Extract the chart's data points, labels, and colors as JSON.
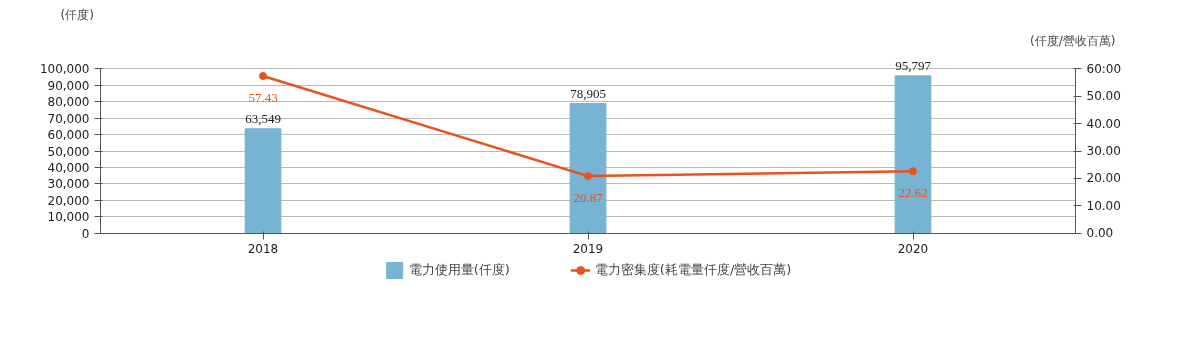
{
  "chart_data": {
    "type": "bar",
    "categories": [
      "2018",
      "2019",
      "2020"
    ],
    "ylabel": "(仟度)",
    "y2label": "(仟度/營收百萬)",
    "series": [
      {
        "name": "電力使用量(仟度)",
        "color": "#77b3d3",
        "values": [
          63549,
          78905,
          95797
        ],
        "value_labels": [
          "63,549",
          "78,905",
          "95,797"
        ]
      },
      {
        "name": "電力密集度(耗電量仟度/營收百萬)",
        "type": "line",
        "axis": "y2",
        "color": "#e8531e",
        "marker": "circle",
        "values": [
          57.43,
          20.87,
          22.62
        ],
        "value_labels": [
          "57.43",
          "20.87",
          "22.62"
        ]
      }
    ],
    "ylim": [
      0,
      100000
    ],
    "yticks": [
      {
        "value": 0,
        "label": "0"
      },
      {
        "value": 10000,
        "label": "10,000"
      },
      {
        "value": 20000,
        "label": "20,000"
      },
      {
        "value": 30000,
        "label": "30,000"
      },
      {
        "value": 40000,
        "label": "40,000"
      },
      {
        "value": 50000,
        "label": "50,000"
      },
      {
        "value": 60000,
        "label": "60,000"
      },
      {
        "value": 70000,
        "label": "70,000"
      },
      {
        "value": 80000,
        "label": "80,000"
      },
      {
        "value": 90000,
        "label": "90,000"
      },
      {
        "value": 100000,
        "label": "100,000"
      }
    ],
    "y2lim": [
      0,
      60
    ],
    "y2ticks": [
      {
        "value": 0,
        "label": "0.00"
      },
      {
        "value": 10,
        "label": "10.00"
      },
      {
        "value": 20,
        "label": "20.00"
      },
      {
        "value": 30,
        "label": "30.00"
      },
      {
        "value": 40,
        "label": "40.00"
      },
      {
        "value": 50,
        "label": "50.00"
      },
      {
        "value": 60,
        "label": "60:00"
      }
    ],
    "grid": "y",
    "legend": "bottom"
  }
}
